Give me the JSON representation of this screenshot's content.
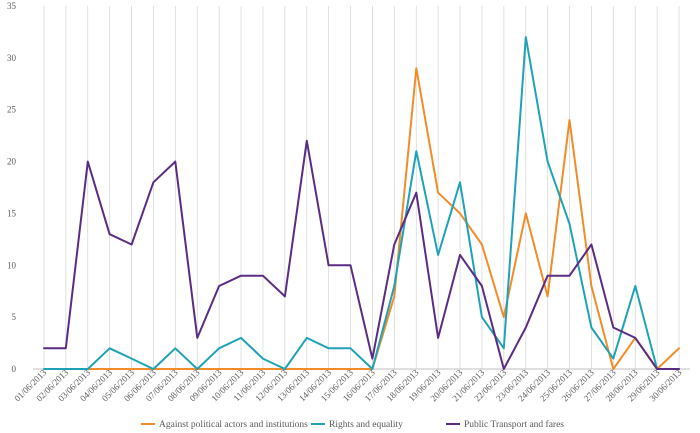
{
  "chart_data": {
    "type": "line",
    "title": "",
    "xlabel": "",
    "ylabel": "",
    "ylim": [
      0,
      35
    ],
    "yticks": [
      0,
      5,
      10,
      15,
      20,
      25,
      30,
      35
    ],
    "grid": "vertical",
    "legend_position": "bottom",
    "x": [
      "01/06/2013",
      "02/06/2013",
      "03/06/2013",
      "04/06/2013",
      "05/06/2013",
      "06/06/2013",
      "07/06/2013",
      "08/06/2013",
      "09/06/2013",
      "10/06/2013",
      "11/06/2013",
      "12/06/2013",
      "13/06/2013",
      "14/06/2013",
      "15/06/2013",
      "16/06/2013",
      "17/06/2013",
      "18/06/2013",
      "19/06/2013",
      "20/06/2013",
      "21/06/2013",
      "22/06/2013",
      "23/06/2013",
      "24/06/2013",
      "25/06/2013",
      "26/06/2013",
      "27/06/2013",
      "28/06/2013",
      "29/06/2013",
      "30/06/2013"
    ],
    "series": [
      {
        "name": "Against political actors and institutions",
        "color": "#F28C28",
        "values": [
          0,
          0,
          0,
          0,
          0,
          0,
          0,
          0,
          0,
          0,
          0,
          0,
          0,
          0,
          0,
          0,
          7,
          29,
          17,
          15,
          12,
          5,
          15,
          7,
          24,
          8,
          0,
          3,
          0,
          2
        ]
      },
      {
        "name": "Rights and equality",
        "color": "#1FA2B8",
        "values": [
          0,
          0,
          0,
          2,
          1,
          0,
          2,
          0,
          2,
          3,
          1,
          0,
          3,
          2,
          2,
          0,
          8,
          21,
          11,
          18,
          5,
          2,
          32,
          20,
          14,
          4,
          1,
          8,
          0,
          0
        ]
      },
      {
        "name": "Public Transport and fares",
        "color": "#5B2C83",
        "values": [
          2,
          2,
          20,
          13,
          12,
          18,
          20,
          3,
          8,
          9,
          9,
          7,
          22,
          10,
          10,
          1,
          12,
          17,
          3,
          11,
          8,
          0,
          4,
          9,
          9,
          12,
          4,
          3,
          0,
          0
        ]
      }
    ]
  }
}
